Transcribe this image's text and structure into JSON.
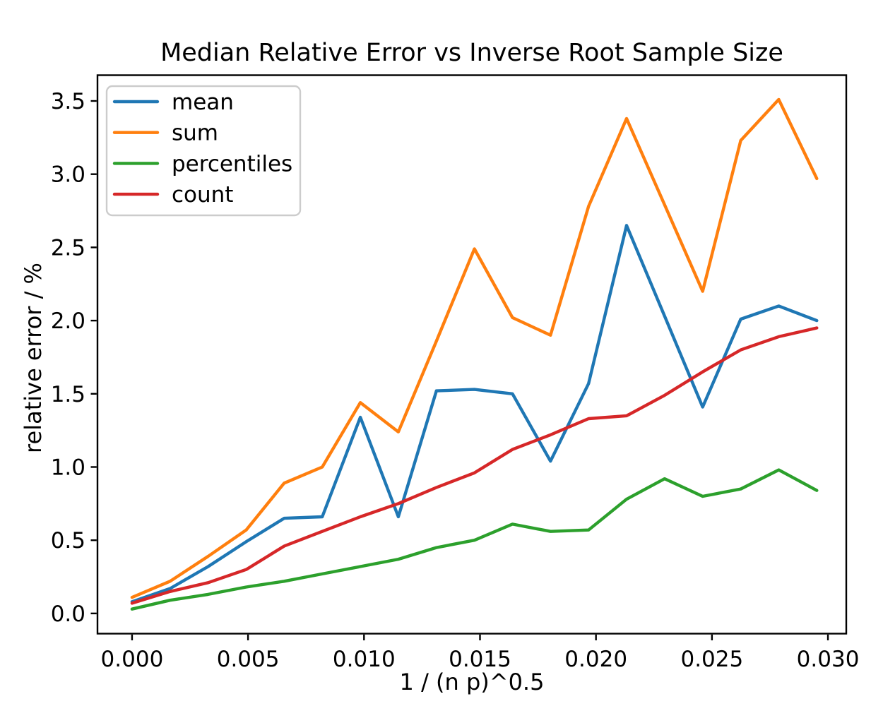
{
  "figure": {
    "title": "Median Relative Error vs Inverse Root Sample Size",
    "xlabel": "1 / (n p)^0.5",
    "ylabel": "relative error / %",
    "background_color": "#ffffff",
    "text_color": "#000000",
    "spine_color": "#000000",
    "legend_border_color": "#cccccc"
  },
  "chart_data": {
    "type": "line",
    "title": "Median Relative Error vs Inverse Root Sample Size",
    "xlabel": "1 / (n p)^0.5",
    "ylabel": "relative error / %",
    "grid": false,
    "legend_position": "upper left",
    "xlim": [
      -0.00149,
      0.03079
    ],
    "ylim": [
      -0.138,
      3.676
    ],
    "x_ticks": [
      0.0,
      0.005,
      0.01,
      0.015,
      0.02,
      0.025,
      0.03
    ],
    "x_tick_labels": [
      "0.000",
      "0.005",
      "0.010",
      "0.015",
      "0.020",
      "0.025",
      "0.030"
    ],
    "y_ticks": [
      0.0,
      0.5,
      1.0,
      1.5,
      2.0,
      2.5,
      3.0,
      3.5
    ],
    "y_tick_labels": [
      "0.0",
      "0.5",
      "1.0",
      "1.5",
      "2.0",
      "2.5",
      "3.0",
      "3.5"
    ],
    "x": [
      0.0,
      0.00164,
      0.00328,
      0.00492,
      0.00656,
      0.0082,
      0.00984,
      0.01148,
      0.01312,
      0.01476,
      0.0164,
      0.01804,
      0.01968,
      0.02132,
      0.02296,
      0.0246,
      0.02624,
      0.02788,
      0.02952
    ],
    "series": [
      {
        "name": "mean",
        "color": "#1f77b4",
        "values": [
          0.08,
          0.17,
          0.32,
          0.49,
          0.65,
          0.66,
          1.34,
          0.66,
          1.52,
          1.53,
          1.5,
          1.04,
          1.57,
          2.65,
          2.03,
          1.41,
          2.01,
          2.1,
          2.0
        ]
      },
      {
        "name": "sum",
        "color": "#ff7f0e",
        "values": [
          0.11,
          0.22,
          0.39,
          0.57,
          0.89,
          1.0,
          1.44,
          1.24,
          1.86,
          2.49,
          2.02,
          1.9,
          2.78,
          3.38,
          2.79,
          2.2,
          3.23,
          3.51,
          2.97
        ]
      },
      {
        "name": "percentiles",
        "color": "#2ca02c",
        "values": [
          0.03,
          0.09,
          0.13,
          0.18,
          0.22,
          0.27,
          0.32,
          0.37,
          0.45,
          0.5,
          0.61,
          0.56,
          0.57,
          0.78,
          0.92,
          0.8,
          0.85,
          0.98,
          0.84
        ]
      },
      {
        "name": "count",
        "color": "#d62728",
        "values": [
          0.07,
          0.15,
          0.21,
          0.3,
          0.46,
          0.56,
          0.66,
          0.75,
          0.86,
          0.96,
          1.12,
          1.22,
          1.33,
          1.35,
          1.49,
          1.65,
          1.8,
          1.89,
          1.95
        ]
      }
    ]
  }
}
